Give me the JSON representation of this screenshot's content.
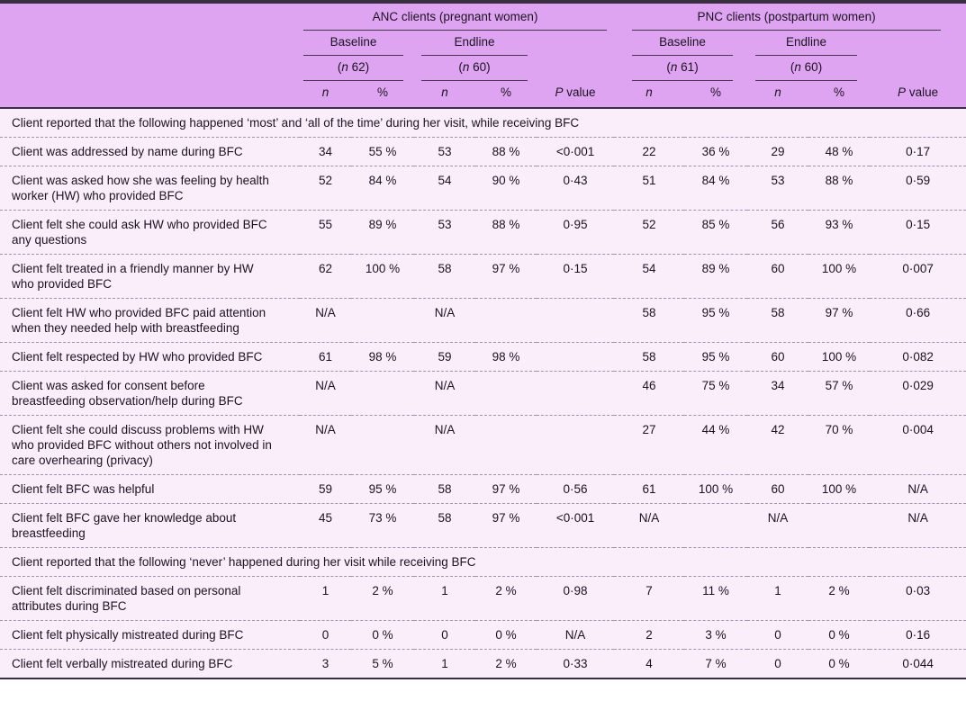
{
  "header": {
    "anc": {
      "title": "ANC clients (pregnant women)",
      "baseline_label": "Baseline",
      "endline_label": "Endline",
      "baseline_n": {
        "pre": "(",
        "sym": "n",
        "post": " 62)"
      },
      "endline_n": {
        "pre": "(",
        "sym": "n",
        "post": " 60)"
      },
      "p": {
        "sym": "P",
        "post": " value"
      }
    },
    "pnc": {
      "title": "PNC clients (postpartum women)",
      "baseline_label": "Baseline",
      "endline_label": "Endline",
      "baseline_n": {
        "pre": "(",
        "sym": "n",
        "post": " 61)"
      },
      "endline_n": {
        "pre": "(",
        "sym": "n",
        "post": " 60)"
      },
      "p": {
        "sym": "P",
        "post": " value"
      }
    },
    "col_n": "n",
    "col_pct": "%"
  },
  "columns_order": [
    "anc-baseline-n",
    "anc-baseline-pct",
    "anc-endline-n",
    "anc-endline-pct",
    "anc-p-value",
    "pnc-baseline-n",
    "pnc-baseline-pct",
    "pnc-endline-n",
    "pnc-endline-pct",
    "pnc-p-value"
  ],
  "sections": [
    {
      "title": "Client reported that the following happened ‘most’ and ‘all of the time’ during her visit, while receiving BFC",
      "rows": [
        {
          "label": "Client was addressed by name during BFC",
          "cells": [
            "34",
            "55 %",
            "53",
            "88 %",
            "<0·001",
            "22",
            "36 %",
            "29",
            "48 %",
            "0·17"
          ]
        },
        {
          "label": "Client was asked how she was feeling by health worker (HW) who provided BFC",
          "cells": [
            "52",
            "84 %",
            "54",
            "90 %",
            "0·43",
            "51",
            "84 %",
            "53",
            "88 %",
            "0·59"
          ]
        },
        {
          "label": "Client felt she could ask HW who provided BFC any questions",
          "cells": [
            "55",
            "89 %",
            "53",
            "88 %",
            "0·95",
            "52",
            "85 %",
            "56",
            "93 %",
            "0·15"
          ]
        },
        {
          "label": "Client felt treated in a friendly manner by HW who provided BFC",
          "cells": [
            "62",
            "100 %",
            "58",
            "97 %",
            "0·15",
            "54",
            "89 %",
            "60",
            "100 %",
            "0·007"
          ]
        },
        {
          "label": "Client felt HW who provided BFC paid attention when they needed help with breastfeeding",
          "cells": [
            "N/A",
            "",
            "N/A",
            "",
            "",
            "58",
            "95 %",
            "58",
            "97 %",
            "0·66"
          ]
        },
        {
          "label": "Client felt respected by HW who provided BFC",
          "cells": [
            "61",
            "98 %",
            "59",
            "98 %",
            "",
            "58",
            "95 %",
            "60",
            "100 %",
            "0·082"
          ]
        },
        {
          "label": "Client was asked for consent before breastfeeding observation/help during BFC",
          "cells": [
            "N/A",
            "",
            "N/A",
            "",
            "",
            "46",
            "75 %",
            "34",
            "57 %",
            "0·029"
          ]
        },
        {
          "label": "Client felt she could discuss problems with HW who provided BFC without others not involved in care overhearing (privacy)",
          "cells": [
            "N/A",
            "",
            "N/A",
            "",
            "",
            "27",
            "44 %",
            "42",
            "70 %",
            "0·004"
          ]
        },
        {
          "label": "Client felt BFC was helpful",
          "cells": [
            "59",
            "95 %",
            "58",
            "97 %",
            "0·56",
            "61",
            "100 %",
            "60",
            "100 %",
            "N/A"
          ]
        },
        {
          "label": "Client felt BFC gave her knowledge about breastfeeding",
          "cells": [
            "45",
            "73 %",
            "58",
            "97 %",
            "<0·001",
            "N/A",
            "",
            "N/A",
            "",
            "N/A"
          ]
        }
      ]
    },
    {
      "title": "Client reported that the following ‘never’ happened during her visit while receiving BFC",
      "rows": [
        {
          "label": "Client felt discriminated based on personal attributes during BFC",
          "cells": [
            "1",
            "2 %",
            "1",
            "2 %",
            "0·98",
            "7",
            "11 %",
            "1",
            "2 %",
            "0·03"
          ]
        },
        {
          "label": "Client felt physically mistreated during BFC",
          "cells": [
            "0",
            "0 %",
            "0",
            "0 %",
            "N/A",
            "2",
            "3 %",
            "0",
            "0 %",
            "0·16"
          ]
        },
        {
          "label": "Client felt verbally mistreated during BFC",
          "cells": [
            "3",
            "5 %",
            "1",
            "2 %",
            "0·33",
            "4",
            "7 %",
            "0",
            "0 %",
            "0·044"
          ]
        }
      ]
    }
  ],
  "colors": {
    "header_bg": "#dfa4f1",
    "body_bg": "#f9eef9",
    "border_dark": "#3a2f40",
    "rule": "#463a4d",
    "dashed_divider": "#a392a9",
    "text": "#1c1322"
  }
}
